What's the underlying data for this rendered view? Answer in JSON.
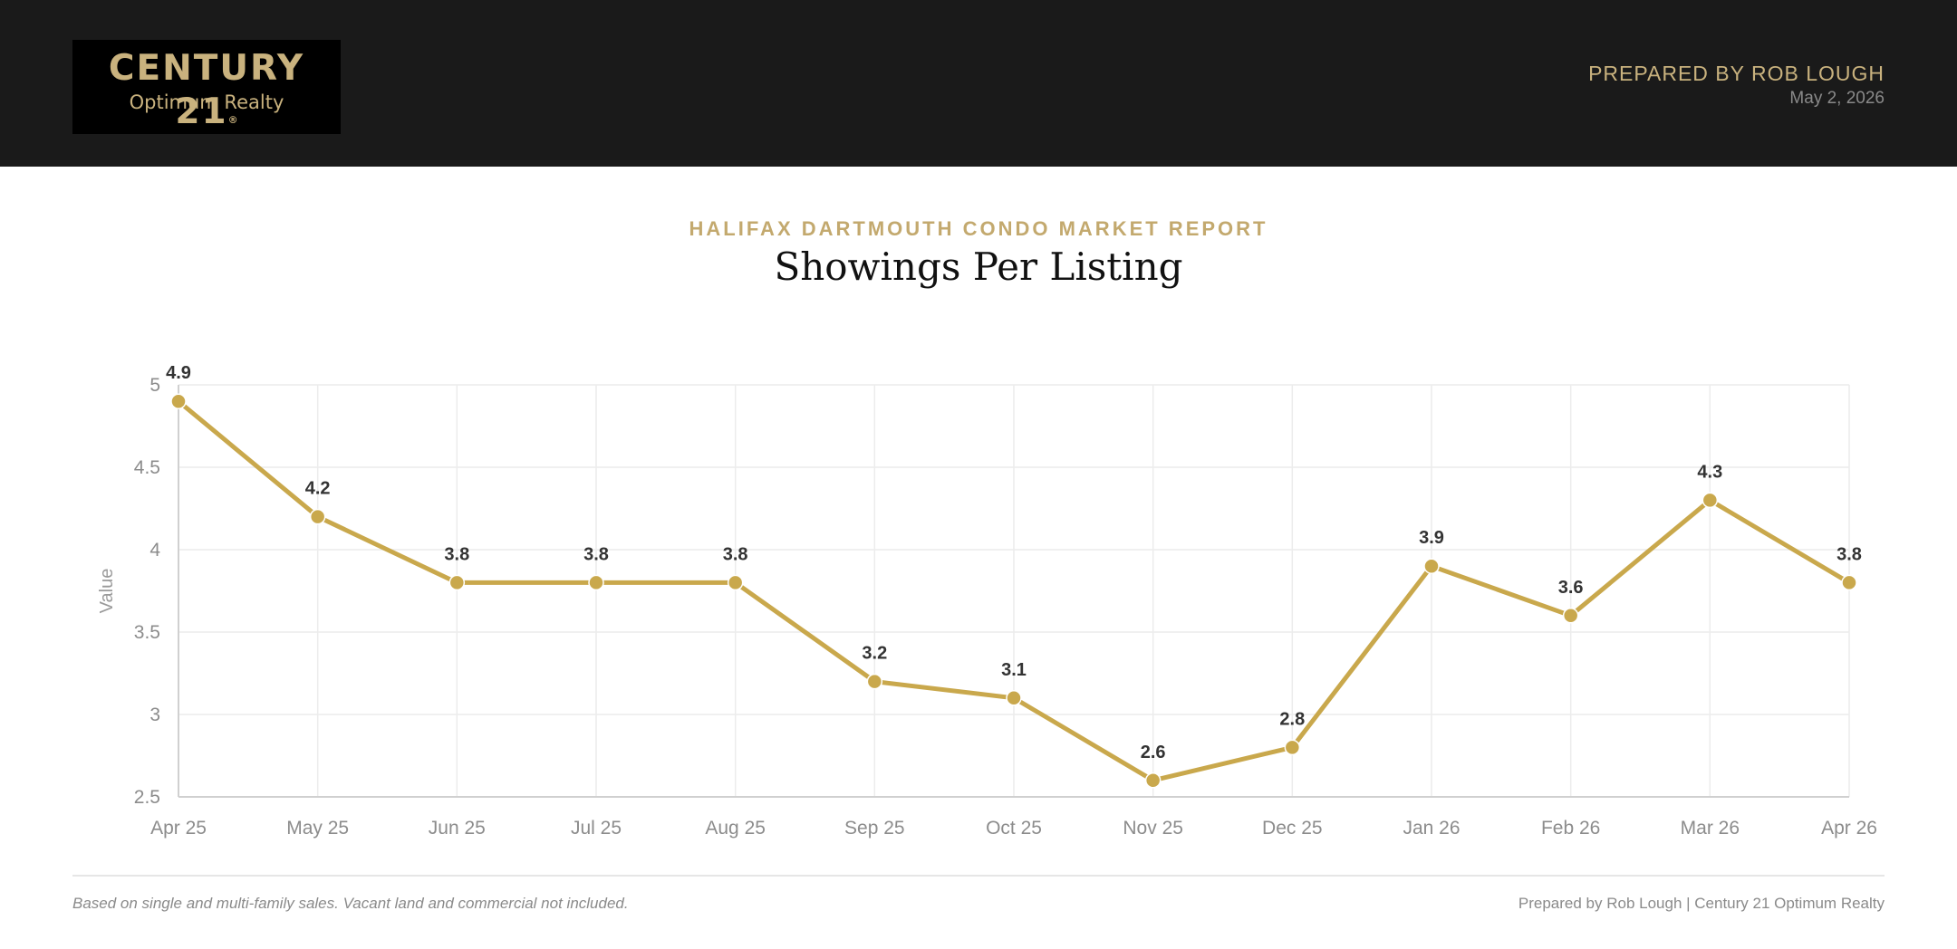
{
  "header": {
    "logo": {
      "brand": "CENTURY 21",
      "registered": "®",
      "sub": "Optimum Realty"
    },
    "prepared_by": "PREPARED BY ROB LOUGH",
    "date": "May 2, 2026",
    "background": "#1a1a1a",
    "accent": "#c9b27e"
  },
  "report": {
    "kicker": "HALIFAX DARTMOUTH CONDO MARKET REPORT",
    "title": "Showings Per Listing"
  },
  "chart_data": {
    "type": "line",
    "title": "Showings Per Listing",
    "xlabel": "",
    "ylabel": "Value",
    "categories": [
      "Apr 25",
      "May 25",
      "Jun 25",
      "Jul 25",
      "Aug 25",
      "Sep 25",
      "Oct 25",
      "Nov 25",
      "Dec 25",
      "Jan 26",
      "Feb 26",
      "Mar 26",
      "Apr 26"
    ],
    "series": [
      {
        "values": [
          4.9,
          4.2,
          3.8,
          3.8,
          3.8,
          3.2,
          3.1,
          2.6,
          2.8,
          3.9,
          3.6,
          4.3,
          3.8
        ],
        "labels": [
          "4.9",
          "4.2",
          "3.8",
          "3.8",
          "3.8",
          "3.2",
          "3.1",
          "2.6",
          "2.8",
          "3.9",
          "3.6",
          "4.3",
          "3.8"
        ],
        "color": "#c9a84c"
      }
    ],
    "ylim": [
      2.5,
      5
    ],
    "yticks": [
      2.5,
      3,
      3.5,
      4,
      4.5,
      5
    ],
    "ytick_labels": [
      "2.5",
      "3",
      "3.5",
      "4",
      "4.5",
      "5"
    ],
    "grid": true,
    "legend": "none",
    "data_labels": true
  },
  "footer": {
    "note": "Based on single and multi-family sales. Vacant land and commercial not included.",
    "credit": "Prepared by Rob Lough | Century 21 Optimum Realty"
  }
}
